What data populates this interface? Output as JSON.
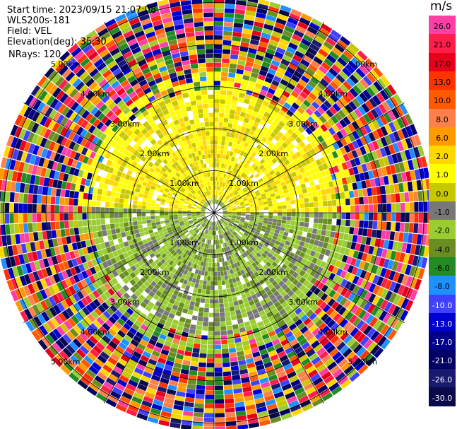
{
  "info": {
    "start_time": "Start time: 2023/09/15 21:07:08",
    "instrument": "WLS200s-181",
    "field": "Field: VEL",
    "elevation": "Elevation(deg): 35.30",
    "nrays": "NRays: 120"
  },
  "colorbar": {
    "unit": "m/s",
    "colors": [
      "#ff3fa6",
      "#ff1e4a",
      "#e8001a",
      "#ff3300",
      "#ff5a00",
      "#ff7f4d",
      "#ff9a00",
      "#ffd700",
      "#ffff00",
      "#c8c800",
      "#787878",
      "#9acd32",
      "#6b8e23",
      "#228b22",
      "#1e90ff",
      "#4040ff",
      "#0000d0",
      "#00008b",
      "#000066",
      "#191970",
      "#0a0a4a"
    ],
    "labels": [
      "26.0",
      "21.0",
      "17.0",
      "13.0",
      "10.0",
      "8.0",
      "6.0",
      "2.0",
      "1.0",
      "0.0",
      "-1.0",
      "-2.0",
      "-4.0",
      "-6.0",
      "-8.0",
      "-10.0",
      "-13.0",
      "-17.0",
      "-21.0",
      "-26.0",
      "-30.0"
    ]
  },
  "chart_data": {
    "type": "heatmap",
    "projection": "polar PPI",
    "field": "VEL",
    "units": "m/s",
    "elevation_deg": 35.3,
    "nrays": 120,
    "range_rings_km": [
      1.0,
      2.0,
      3.0,
      4.0,
      5.0
    ],
    "ring_labels": [
      "1.00km",
      "2.00km",
      "3.00km",
      "4.00km",
      "5.00km"
    ],
    "max_range_km": 5.2,
    "color_scale": {
      "min": -30.0,
      "max": 26.0
    },
    "near_field": {
      "description_ranges_km": [
        0.0,
        2.8
      ],
      "north_sector_values": [
        1.0,
        2.0,
        0.0
      ],
      "south_sector_values": [
        -2.0,
        0.0,
        -4.0
      ]
    },
    "far_field_noise_values": [
      -30.0,
      -26.0,
      -21.0,
      -17.0,
      -13.0,
      -10.0,
      -8.0,
      -6.0,
      -4.0,
      -2.0,
      0.0,
      2.0,
      6.0,
      8.0,
      10.0,
      13.0,
      17.0,
      21.0,
      26.0
    ]
  }
}
